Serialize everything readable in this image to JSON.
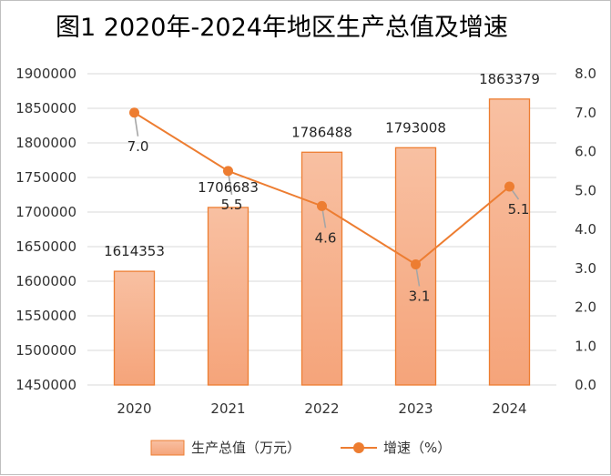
{
  "colors": {
    "bar_top": "#f8c0a2",
    "bar_bottom": "#f5a47a",
    "bar_stroke": "#ed7d31",
    "line": "#ed7d31",
    "marker": "#ed7d31",
    "gridline": "#d9d9d9",
    "leader": "#a6a6a6"
  },
  "chart_data": {
    "type": "bar+line",
    "title": "图1  2020年-2024年地区生产总值及增速",
    "categories": [
      "2020",
      "2021",
      "2022",
      "2023",
      "2024"
    ],
    "series": [
      {
        "name": "生产总值（万元）",
        "type": "bar",
        "axis": "left",
        "values": [
          1614353,
          1706683,
          1786488,
          1793008,
          1863379
        ],
        "labels": [
          "1614353",
          "1706683",
          "1786488",
          "1793008",
          "1863379"
        ]
      },
      {
        "name": "增速（%）",
        "type": "line",
        "axis": "right",
        "values": [
          7.0,
          5.5,
          4.6,
          3.1,
          5.1
        ],
        "labels": [
          "7.0",
          "5.5",
          "4.6",
          "3.1",
          "5.1"
        ]
      }
    ],
    "y_left": {
      "min": 1450000,
      "max": 1900000,
      "ticks": [
        "1450000",
        "1500000",
        "1550000",
        "1600000",
        "1650000",
        "1700000",
        "1750000",
        "1800000",
        "1850000",
        "1900000"
      ]
    },
    "y_right": {
      "min": 0,
      "max": 8,
      "ticks": [
        "0.0",
        "1.0",
        "2.0",
        "3.0",
        "4.0",
        "5.0",
        "6.0",
        "7.0",
        "8.0"
      ]
    },
    "grid": true,
    "legend_position": "bottom"
  }
}
